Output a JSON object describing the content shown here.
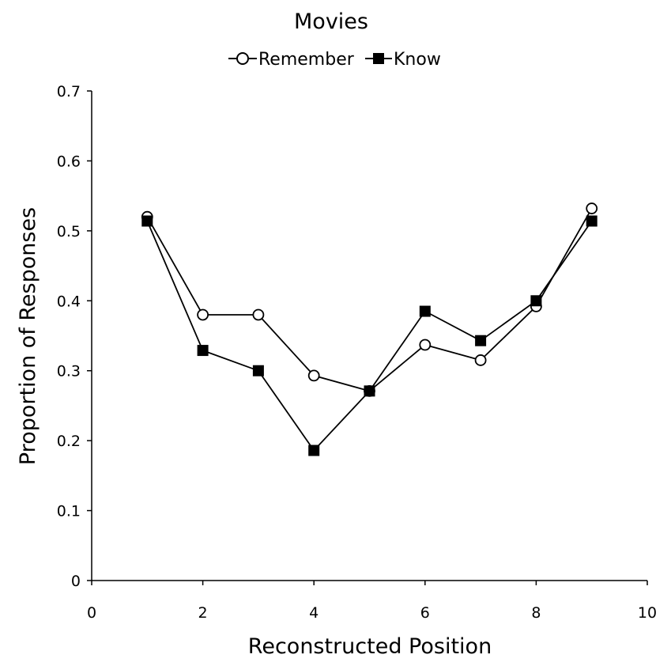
{
  "chart_data": {
    "type": "line",
    "title": "Movies",
    "xlabel": "Reconstructed Position",
    "ylabel": "Proportion of Responses",
    "xlim": [
      0,
      10
    ],
    "ylim": [
      0,
      0.7
    ],
    "xticks": [
      0,
      2,
      4,
      6,
      8,
      10
    ],
    "xtick_labels": [
      "0",
      "2",
      "4",
      "6",
      "8",
      "10"
    ],
    "yticks": [
      0,
      0.1,
      0.2,
      0.3,
      0.4,
      0.5,
      0.6,
      0.7
    ],
    "ytick_labels": [
      "0",
      "0.1",
      "0.2",
      "0.3",
      "0.4",
      "0.5",
      "0.6",
      "0.7"
    ],
    "grid": false,
    "legend_position": "top-center",
    "x": [
      1,
      2,
      3,
      4,
      5,
      6,
      7,
      8,
      9
    ],
    "series": [
      {
        "name": "Remember",
        "marker": "open-circle",
        "color": "#000000",
        "values": [
          0.52,
          0.38,
          0.38,
          0.293,
          0.271,
          0.337,
          0.315,
          0.392,
          0.532
        ]
      },
      {
        "name": "Know",
        "marker": "filled-square",
        "color": "#000000",
        "values": [
          0.514,
          0.329,
          0.3,
          0.186,
          0.271,
          0.385,
          0.343,
          0.4,
          0.514
        ]
      }
    ]
  }
}
